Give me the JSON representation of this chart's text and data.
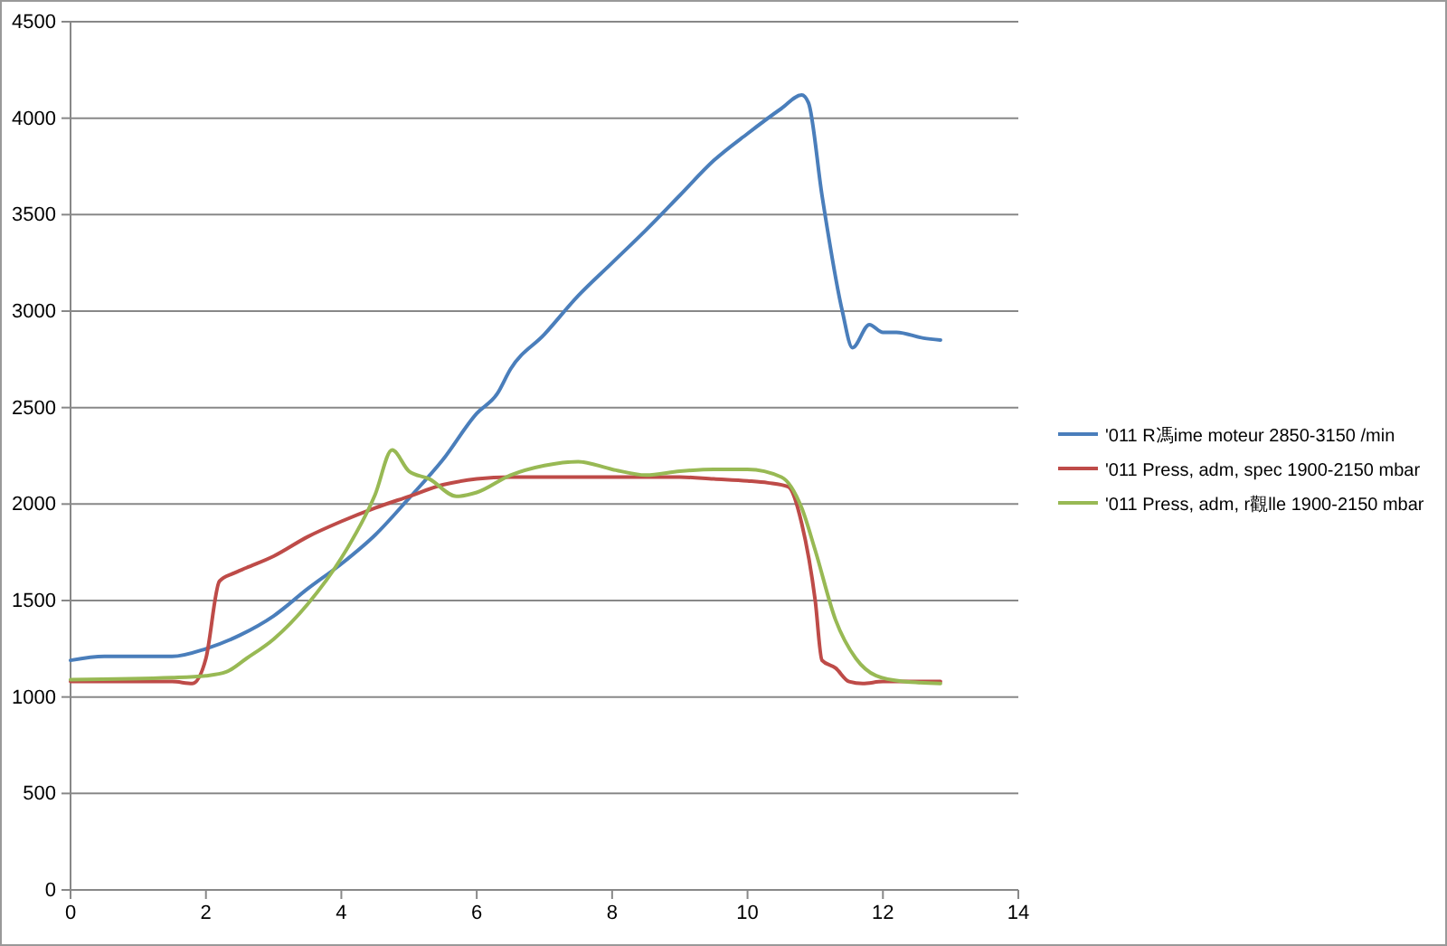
{
  "chart_data": {
    "type": "line",
    "xlim": [
      0,
      14
    ],
    "xticks": [
      0,
      2,
      4,
      6,
      8,
      10,
      12,
      14
    ],
    "ylim": [
      0,
      4500
    ],
    "yticks": [
      0,
      500,
      1000,
      1500,
      2000,
      2500,
      3000,
      3500,
      4000,
      4500
    ],
    "grid": "y",
    "legend": "right",
    "marker": "none",
    "line_style": "solid",
    "series": [
      {
        "name": "'011 R馮ime moteur 2850-3150  /min",
        "color": "#4a7ebb",
        "x": [
          0,
          0.5,
          1.5,
          2,
          2.5,
          3,
          3.5,
          4,
          4.5,
          5,
          5.5,
          6,
          6.3,
          6.5,
          7,
          7.5,
          8,
          8.5,
          9,
          9.5,
          10,
          10.5,
          10.8,
          10.9,
          11.1,
          11.4,
          11.55,
          11.8,
          12,
          12.2,
          12.6,
          12.85
        ],
        "values": [
          1190,
          1210,
          1210,
          1250,
          1320,
          1420,
          1560,
          1690,
          1840,
          2030,
          2230,
          2470,
          2570,
          2700,
          2880,
          3080,
          3250,
          3420,
          3600,
          3780,
          3920,
          4050,
          4120,
          4080,
          3600,
          3000,
          2810,
          2930,
          2890,
          2890,
          2860,
          2850
        ]
      },
      {
        "name": "'011 Press, adm, spec 1900-2150  mbar",
        "color": "#be4b48",
        "x": [
          0,
          1.5,
          1.8,
          2,
          2.2,
          2.4,
          2.6,
          3,
          3.5,
          4,
          4.5,
          5,
          5.5,
          6,
          6.5,
          8,
          9,
          9.5,
          10,
          10.3,
          10.6,
          10.8,
          11,
          11.1,
          11.3,
          11.5,
          11.7,
          12,
          12.85
        ],
        "values": [
          1080,
          1080,
          1070,
          1200,
          1600,
          1640,
          1670,
          1730,
          1830,
          1910,
          1980,
          2040,
          2100,
          2130,
          2140,
          2140,
          2140,
          2130,
          2120,
          2110,
          2090,
          1900,
          1500,
          1190,
          1150,
          1080,
          1070,
          1080,
          1080
        ]
      },
      {
        "name": "'011 Press, adm, r觀lle 1900-2150  mbar",
        "color": "#98b954",
        "x": [
          0,
          1.5,
          2,
          2.3,
          2.6,
          3,
          3.5,
          4,
          4.5,
          4.75,
          5,
          5.3,
          5.7,
          6,
          6.5,
          7,
          7.5,
          8,
          8.5,
          9,
          9.5,
          10,
          10.5,
          10.8,
          11,
          11.3,
          11.6,
          11.9,
          12.3,
          12.85
        ],
        "values": [
          1090,
          1100,
          1110,
          1130,
          1200,
          1300,
          1480,
          1720,
          2050,
          2280,
          2170,
          2130,
          2040,
          2060,
          2150,
          2200,
          2220,
          2180,
          2150,
          2170,
          2180,
          2180,
          2140,
          1980,
          1760,
          1400,
          1200,
          1110,
          1080,
          1070
        ]
      }
    ]
  }
}
